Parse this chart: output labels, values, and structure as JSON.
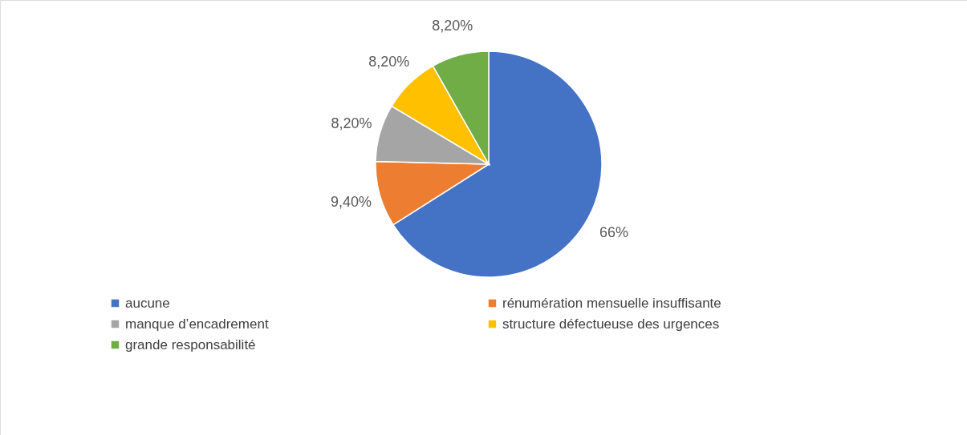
{
  "chart_data": {
    "type": "pie",
    "categories": [
      "aucune",
      "rénumération mensuelle insuffisante",
      "manque d’encadrement",
      "structure défectueuse des urgences",
      "grande responsabilité"
    ],
    "values": [
      66,
      9.4,
      8.2,
      8.2,
      8.2
    ],
    "colors": [
      "#4472c4",
      "#ed7d31",
      "#a5a5a5",
      "#ffc000",
      "#70ad47"
    ],
    "value_labels": [
      "66%",
      "9,40%",
      "8,20%",
      "8,20%",
      "8,20%"
    ],
    "legend": "bottom"
  }
}
